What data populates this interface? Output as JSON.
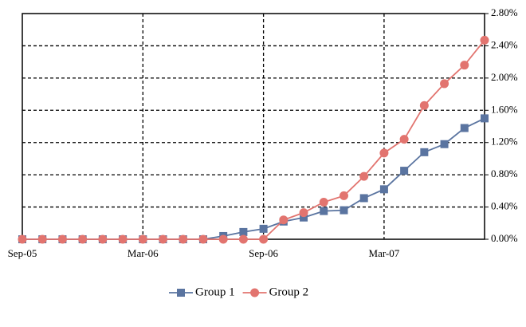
{
  "chart_data": {
    "type": "line",
    "categories": [
      "Sep-05",
      null,
      null,
      null,
      null,
      null,
      "Mar-06",
      null,
      null,
      null,
      null,
      null,
      "Sep-06",
      null,
      null,
      null,
      null,
      null,
      "Mar-07",
      null,
      null,
      null,
      null,
      null
    ],
    "series": [
      {
        "name": "Group 1",
        "color": "#5a74a0",
        "marker": "square",
        "values": [
          0,
          0,
          0,
          0,
          0,
          0,
          0,
          0,
          0,
          0,
          0.04,
          0.09,
          0.13,
          0.22,
          0.27,
          0.35,
          0.36,
          0.51,
          0.62,
          0.85,
          1.08,
          1.18,
          1.38,
          1.5
        ]
      },
      {
        "name": "Group 2",
        "color": "#e2746f",
        "marker": "circle",
        "values": [
          0,
          0,
          0,
          0,
          0,
          0,
          0,
          0,
          0,
          0,
          0,
          0,
          0,
          0.24,
          0.33,
          0.46,
          0.54,
          0.78,
          1.07,
          1.24,
          1.66,
          1.93,
          2.16,
          2.47
        ]
      }
    ],
    "ylim": [
      0,
      2.8
    ],
    "yticks": [
      {
        "value": 0,
        "label": "0.00%"
      },
      {
        "value": 0.4,
        "label": "0.40%"
      },
      {
        "value": 0.8,
        "label": "0.80%"
      },
      {
        "value": 1.2,
        "label": "1.20%"
      },
      {
        "value": 1.6,
        "label": "1.60%"
      },
      {
        "value": 2.0,
        "label": "2.00%"
      },
      {
        "value": 2.4,
        "label": "2.40%"
      },
      {
        "value": 2.8,
        "label": "2.80%"
      }
    ],
    "grid": true,
    "legend": "bottom"
  }
}
